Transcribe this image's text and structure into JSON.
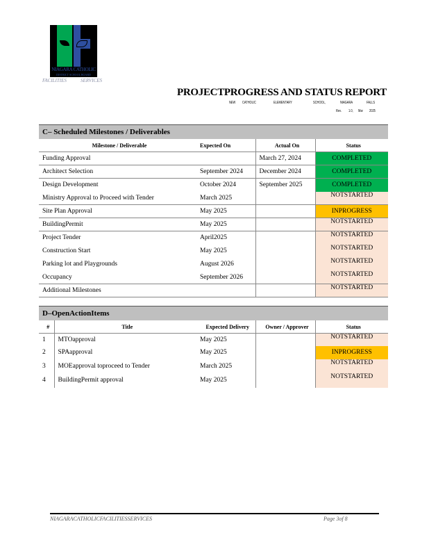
{
  "header": {
    "logo_text": "NIAGARA CATHOLIC",
    "logo_subtext": "DISTRICT SCHOOL BOARD",
    "facilities": "FACILITIES",
    "services": "SERVICES",
    "title": "PROJECTPROGRESS AND STATUS REPORT",
    "subtitle": [
      "NEW",
      "CATHOLIC",
      "ELEMENTARY",
      "SCHOOL,",
      "NIAGARA",
      "FALLS"
    ],
    "revision": [
      "Rev.",
      "1.0,",
      "Mar",
      "2025"
    ]
  },
  "colors": {
    "completed": "#00b050",
    "in_progress": "#ffc000",
    "not_started": "#fbe4d5",
    "section_header": "#bfbfbf"
  },
  "milestones": {
    "heading": "C– Scheduled Milestones / Deliverables",
    "columns": [
      "Milestone / Deliverable",
      "Expected On",
      "Actual On",
      "Status"
    ],
    "rows": [
      {
        "name": "Funding Approval",
        "expected": "",
        "actual": "March 27, 2024",
        "status": "COMPLETED"
      },
      {
        "name": "Architect Selection",
        "expected": "September 2024",
        "actual": "December 2024",
        "status": "COMPLETED"
      },
      {
        "name": "Design Development",
        "expected": "October 2024",
        "actual": "September 2025",
        "status": "COMPLETED"
      },
      {
        "name": "Ministry Approval to Proceed with Tender",
        "expected": "March 2025",
        "actual": "",
        "status": "NOTSTARTED"
      },
      {
        "name": "Site Plan Approval",
        "expected": "May 2025",
        "actual": "",
        "status": "INPROGRESS"
      },
      {
        "name": "BuildingPermit",
        "expected": "May 2025",
        "actual": "",
        "status": "NOTSTARTED"
      },
      {
        "name": "Project Tender",
        "expected": "April2025",
        "actual": "",
        "status": "NOTSTARTED"
      },
      {
        "name": "Construction Start",
        "expected": "May 2025",
        "actual": "",
        "status": "NOTSTARTED"
      },
      {
        "name": "Parking lot and Playgrounds",
        "expected": "August 2026",
        "actual": "",
        "status": "NOTSTARTED"
      },
      {
        "name": "Occupancy",
        "expected": "September 2026",
        "actual": "",
        "status": "NOTSTARTED"
      },
      {
        "name": "Additional Milestones",
        "expected": "",
        "actual": "",
        "status": "NOTSTARTED"
      }
    ]
  },
  "actions": {
    "heading": "D–OpenActionItems",
    "columns": [
      "#",
      "Title",
      "Expected Delivery",
      "Owner / Approver",
      "Status"
    ],
    "rows": [
      {
        "num": "1",
        "title": "MTOapproval",
        "expected": "May 2025",
        "owner": "",
        "status": "NOTSTARTED"
      },
      {
        "num": "2",
        "title": "SPAapproval",
        "expected": "May 2025",
        "owner": "",
        "status": "INPROGRESS"
      },
      {
        "num": "3",
        "title": "MOEapproval toproceed to Tender",
        "expected": "March 2025",
        "owner": "",
        "status": "NOTSTARTED"
      },
      {
        "num": "4",
        "title": "BuildingPermit approval",
        "expected": "May 2025",
        "owner": "",
        "status": "NOTSTARTED"
      }
    ]
  },
  "footer": {
    "left": "NIAGARACATHOLICFACILITIESSERVICES",
    "right": "Page 3of 8"
  }
}
